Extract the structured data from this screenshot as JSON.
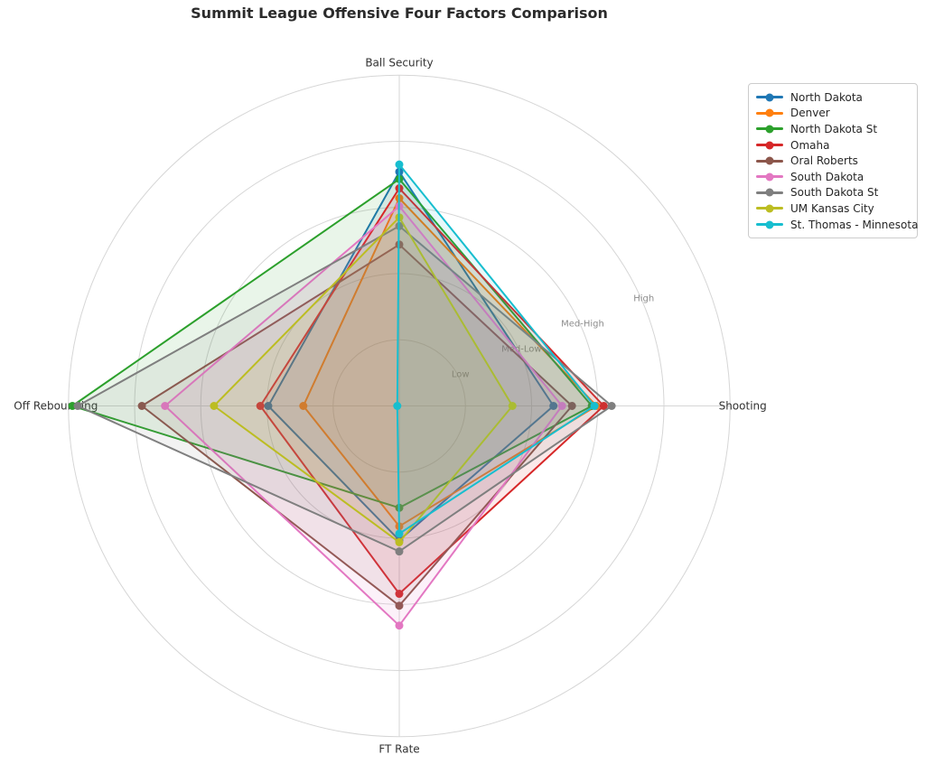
{
  "title": "Summit League Offensive Four Factors Comparison",
  "chart_data": {
    "type": "radar",
    "categories": [
      "Ball Security",
      "Shooting",
      "FT Rate",
      "Off Rebounding"
    ],
    "category_angles_deg": [
      90,
      0,
      -90,
      180
    ],
    "radial_ticks": [
      {
        "label": "Low",
        "value": 1
      },
      {
        "label": "Med-Low",
        "value": 2
      },
      {
        "label": "Med-High",
        "value": 3
      },
      {
        "label": "High",
        "value": 4
      }
    ],
    "r_max": 5,
    "grid": true,
    "legend_position": "upper right",
    "series": [
      {
        "name": "North Dakota",
        "color": "#1f77b4",
        "values": [
          3.54,
          2.33,
          2.03,
          1.98
        ]
      },
      {
        "name": "Denver",
        "color": "#ff7f0e",
        "values": [
          3.14,
          2.98,
          1.82,
          1.45
        ]
      },
      {
        "name": "North Dakota St",
        "color": "#2ca02c",
        "values": [
          3.43,
          2.91,
          1.54,
          4.94
        ]
      },
      {
        "name": "Omaha",
        "color": "#d62728",
        "values": [
          3.29,
          3.09,
          2.84,
          2.1
        ]
      },
      {
        "name": "Oral Roberts",
        "color": "#8c564b",
        "values": [
          2.44,
          2.61,
          3.02,
          3.89
        ]
      },
      {
        "name": "South Dakota",
        "color": "#e377c2",
        "values": [
          3.02,
          2.46,
          3.32,
          3.54
        ]
      },
      {
        "name": "South Dakota St",
        "color": "#7f7f7f",
        "values": [
          2.72,
          3.21,
          2.2,
          4.86
        ]
      },
      {
        "name": "UM Kansas City",
        "color": "#bcbd22",
        "values": [
          2.85,
          1.71,
          2.06,
          2.8
        ]
      },
      {
        "name": "St. Thomas - Minnesota",
        "color": "#17becf",
        "values": [
          3.65,
          2.95,
          1.93,
          0.03
        ]
      }
    ],
    "style": {
      "grid_color": "#d6d6d6",
      "tick_label_color": "#8c8c8c",
      "axis_label_color": "#333333",
      "fill_alpha": 0.1,
      "line_width": 2,
      "marker_radius": 4.5,
      "tick_label_angle_deg": 22.5
    }
  }
}
